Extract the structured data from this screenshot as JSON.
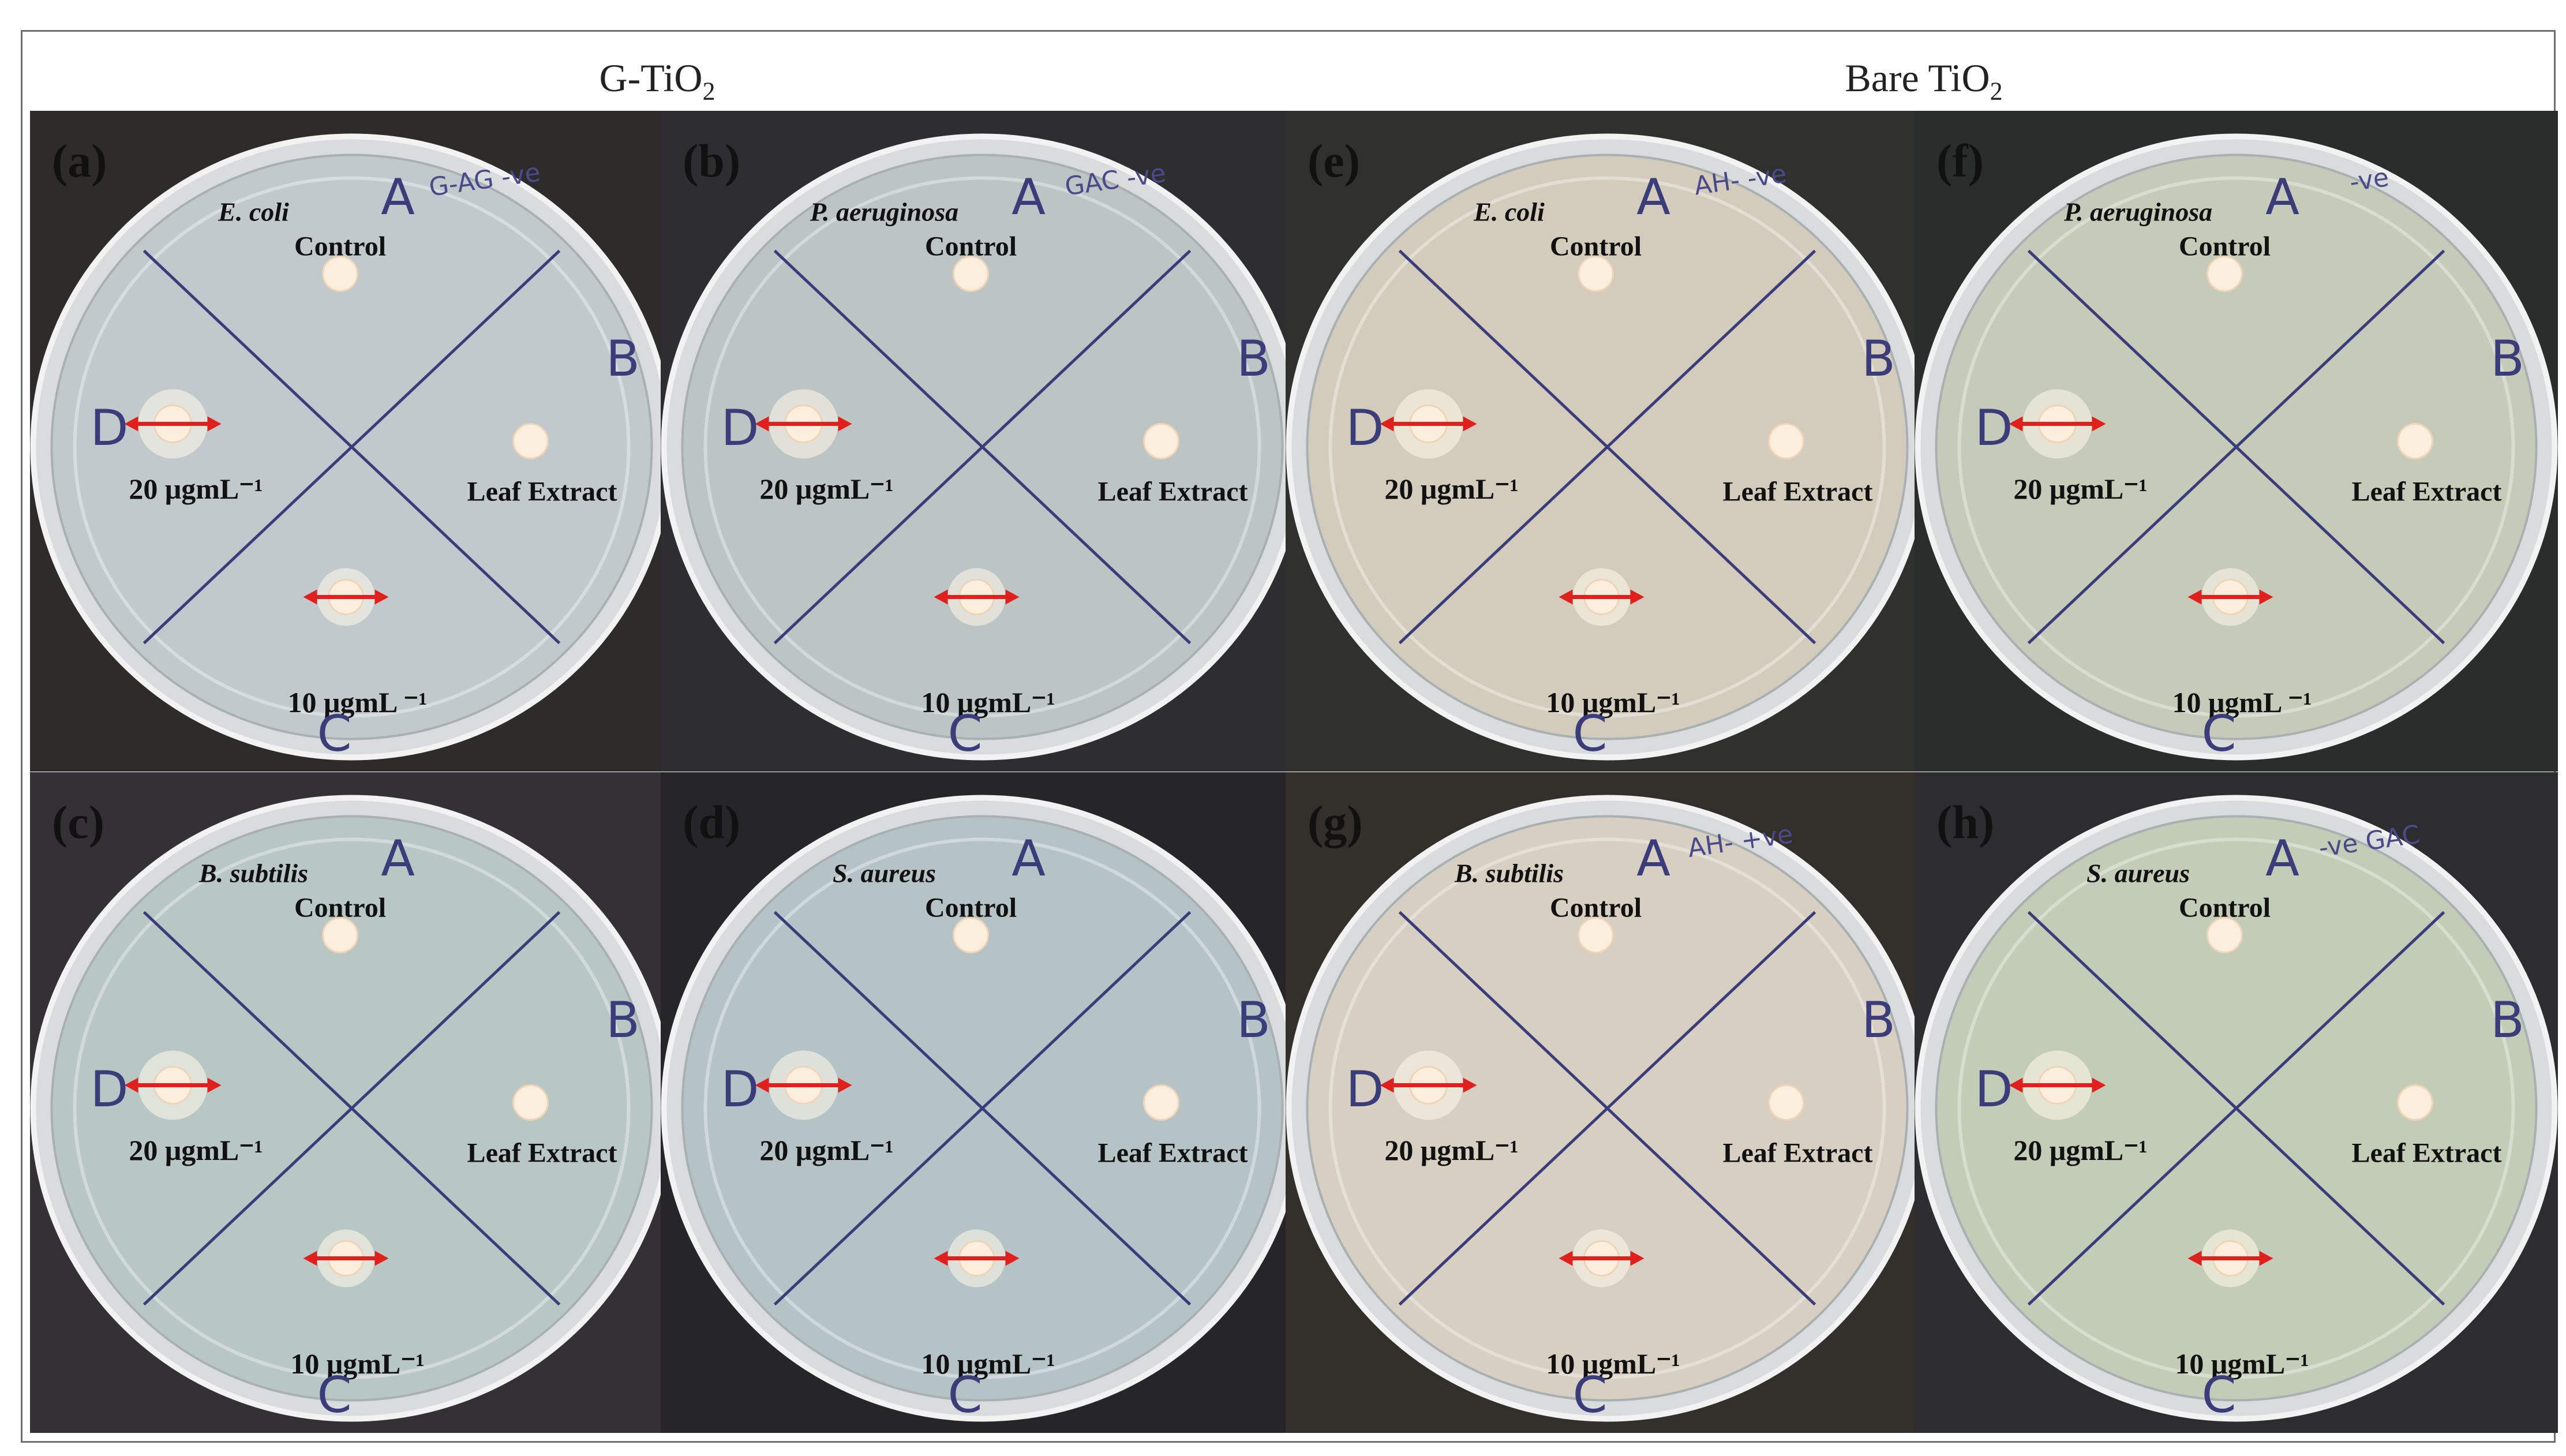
{
  "groups": {
    "left": {
      "title_main": "G-TiO",
      "title_sub": "2"
    },
    "right": {
      "title_main": "Bare TiO",
      "title_sub": "2"
    }
  },
  "panels": [
    {
      "label": "(a)",
      "organism": "E. coli",
      "control": "Control",
      "leaf": "Leaf Extract",
      "c20": "20 μgmL⁻¹",
      "c10": "10 μgmL ⁻¹",
      "marks": {
        "A": "A",
        "B": "B",
        "C": "C",
        "D": "D"
      },
      "note": "G-AG -ve"
    },
    {
      "label": "(b)",
      "organism": "P. aeruginosa",
      "control": "Control",
      "leaf": "Leaf Extract",
      "c20": "20 μgmL⁻¹",
      "c10": "10 μgmL⁻¹",
      "marks": {
        "A": "A",
        "B": "B",
        "C": "C",
        "D": "D"
      },
      "note": "GAC -ve"
    },
    {
      "label": "(c)",
      "organism": "B. subtilis",
      "control": "Control",
      "leaf": "Leaf Extract",
      "c20": "20 μgmL⁻¹",
      "c10": "10 μgmL⁻¹",
      "marks": {
        "A": "A",
        "B": "B",
        "C": "C",
        "D": "D"
      },
      "note": ""
    },
    {
      "label": "(d)",
      "organism": "S. aureus",
      "control": "Control",
      "leaf": "Leaf Extract",
      "c20": "20 μgmL⁻¹",
      "c10": "10 μgmL⁻¹",
      "marks": {
        "A": "A",
        "B": "B",
        "C": "C",
        "D": "D"
      },
      "note": ""
    },
    {
      "label": "(e)",
      "organism": "E. coli",
      "control": "Control",
      "leaf": "Leaf Extract",
      "c20": "20 μgmL⁻¹",
      "c10": "10 μgmL⁻¹",
      "marks": {
        "A": "A",
        "B": "B",
        "C": "C",
        "D": "D"
      },
      "note": "AH- -ve"
    },
    {
      "label": "(f)",
      "organism": "P. aeruginosa",
      "control": "Control",
      "leaf": "Leaf Extract",
      "c20": "20 μgmL⁻¹",
      "c10": "10 μgmL ⁻¹",
      "marks": {
        "A": "A",
        "B": "B",
        "C": "C",
        "D": "D"
      },
      "note": "-ve"
    },
    {
      "label": "(g)",
      "organism": "B. subtilis",
      "control": "Control",
      "leaf": "Leaf Extract",
      "c20": "20 μgmL⁻¹",
      "c10": "10 μgmL⁻¹",
      "marks": {
        "A": "A",
        "B": "B",
        "C": "C",
        "D": "D"
      },
      "note": "AH- +ve"
    },
    {
      "label": "(h)",
      "organism": "S. aureus",
      "control": "Control",
      "leaf": "Leaf Extract",
      "c20": "20 μgmL⁻¹",
      "c10": "10 μgmL⁻¹",
      "marks": {
        "A": "A",
        "B": "B",
        "C": "C",
        "D": "D"
      },
      "note": "-ve GAC"
    }
  ],
  "colors": {
    "inhibition_arrow": "#e0201c",
    "pen_mark": "#3a3d7a",
    "agar": "#c9ced0",
    "background": "#2a2a2c"
  }
}
